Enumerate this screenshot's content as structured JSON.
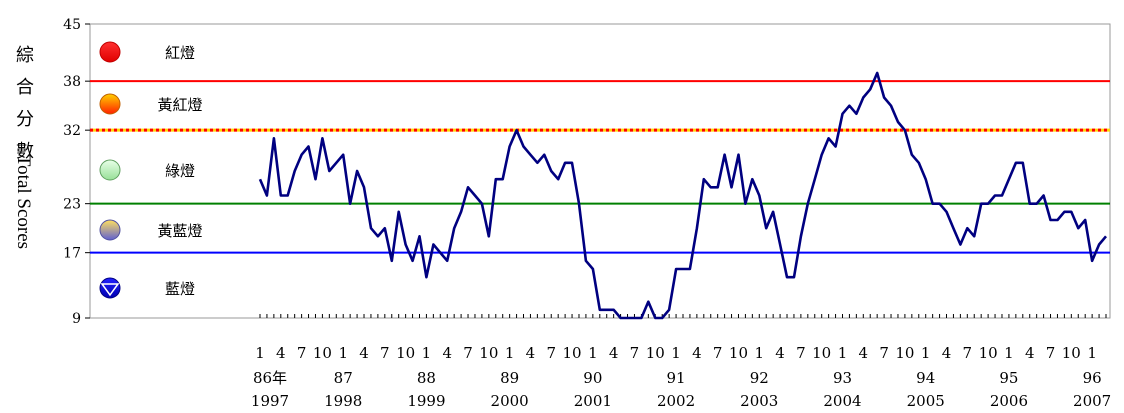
{
  "chart_data": {
    "type": "line",
    "title": "",
    "ylabel_cjk": [
      "綜",
      "合",
      "分",
      "數"
    ],
    "ylabel_en": "Total Scores",
    "ylim": [
      9,
      45
    ],
    "yticks": [
      9,
      17,
      23,
      32,
      38,
      45
    ],
    "threshold_lines": [
      {
        "value": 38,
        "color": "#ff0000",
        "style": "solid"
      },
      {
        "value": 32,
        "color": "#ff0000",
        "style": "dotted-on-yellow"
      },
      {
        "value": 23,
        "color": "#008000",
        "style": "solid"
      },
      {
        "value": 17,
        "color": "#0000ff",
        "style": "solid"
      }
    ],
    "legend": [
      {
        "label": "紅燈",
        "icon": "red-circle",
        "color": "#ff0000"
      },
      {
        "label": "黃紅燈",
        "icon": "yellow-red-circle",
        "color": "#ffa000"
      },
      {
        "label": "綠燈",
        "icon": "green-circle",
        "color": "#b8f0b8"
      },
      {
        "label": "黃藍燈",
        "icon": "yellow-blue-circle",
        "color": "#8080e0"
      },
      {
        "label": "藍燈",
        "icon": "blue-circle",
        "color": "#0000ff"
      }
    ],
    "month_labels": [
      "1",
      "4",
      "7",
      "10",
      "1",
      "4",
      "7",
      "10",
      "1",
      "4",
      "7",
      "10",
      "1",
      "4",
      "7",
      "10",
      "1",
      "4",
      "7",
      "10",
      "1",
      "4",
      "7",
      "10",
      "1",
      "4",
      "7",
      "10",
      "1",
      "4",
      "7",
      "10",
      "1",
      "4",
      "7",
      "10",
      "1",
      "4",
      "7",
      "10",
      "1"
    ],
    "year_labels_roc": [
      "86年",
      "87",
      "88",
      "89",
      "90",
      "91",
      "92",
      "93",
      "94",
      "95",
      "96"
    ],
    "year_labels_ad": [
      "1997",
      "1998",
      "1999",
      "2000",
      "2001",
      "2002",
      "2003",
      "2004",
      "2005",
      "2006",
      "2007"
    ],
    "series": [
      {
        "color": "#000080",
        "values": [
          26,
          24,
          31,
          24,
          24,
          27,
          29,
          30,
          26,
          31,
          27,
          28,
          29,
          23,
          27,
          25,
          20,
          19,
          20,
          16,
          22,
          18,
          16,
          19,
          14,
          18,
          17,
          16,
          20,
          22,
          25,
          24,
          23,
          19,
          26,
          26,
          30,
          32,
          30,
          29,
          28,
          29,
          27,
          26,
          28,
          28,
          23,
          16,
          15,
          10,
          10,
          10,
          9,
          9,
          9,
          9,
          11,
          9,
          9,
          10,
          15,
          15,
          15,
          20,
          26,
          25,
          25,
          29,
          25,
          29,
          23,
          26,
          24,
          20,
          22,
          18,
          14,
          14,
          19,
          23,
          26,
          29,
          31,
          30,
          34,
          35,
          34,
          36,
          37,
          39,
          36,
          35,
          33,
          32,
          29,
          28,
          26,
          23,
          23,
          22,
          20,
          18,
          20,
          19,
          23,
          23,
          24,
          24,
          26,
          28,
          28,
          23,
          23,
          24,
          21,
          21,
          22,
          22,
          20,
          21,
          16,
          18,
          19
        ]
      }
    ]
  }
}
